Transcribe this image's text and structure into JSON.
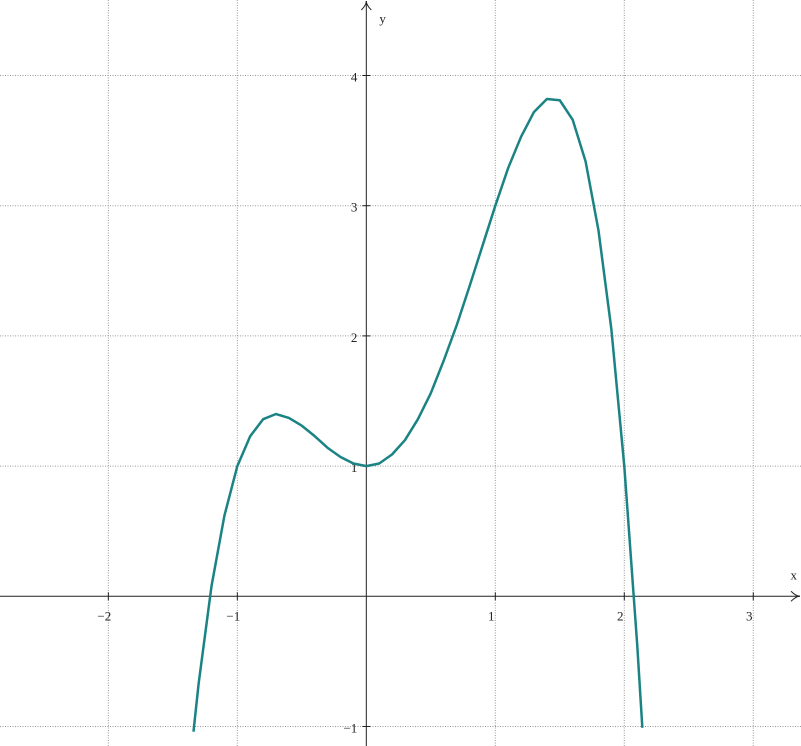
{
  "chart_data": {
    "type": "line",
    "x_label": "x",
    "y_label": "y",
    "xlim": [
      -2.84,
      3.37
    ],
    "ylim": [
      -1.15,
      4.58
    ],
    "xticks": [
      {
        "value": -2,
        "label": "−2"
      },
      {
        "value": -1,
        "label": "−1"
      },
      1,
      2,
      3
    ],
    "yticks": [
      {
        "value": -1,
        "label": "−1"
      },
      1,
      2,
      3,
      4
    ],
    "grid": true,
    "series": [
      {
        "color": "#1b8383",
        "x": [
          -1.34,
          -1.3,
          -1.2,
          -1.1,
          -1.0,
          -0.9,
          -0.8,
          -0.7,
          -0.6,
          -0.5,
          -0.4,
          -0.3,
          -0.2,
          -0.1,
          0,
          0.1,
          0.2,
          0.3,
          0.4,
          0.5,
          0.6,
          0.7,
          0.8,
          0.9,
          1.0,
          1.1,
          1.2,
          1.3,
          1.4,
          1.5,
          1.6,
          1.7,
          1.8,
          1.9,
          2.0,
          2.1,
          2.14
        ],
        "values": [
          -1.04,
          -0.67,
          0.08,
          0.62,
          1,
          1.23,
          1.36,
          1.4,
          1.37,
          1.31,
          1.23,
          1.14,
          1.07,
          1.02,
          1,
          1.02,
          1.09,
          1.2,
          1.36,
          1.56,
          1.81,
          2.08,
          2.38,
          2.69,
          3,
          3.29,
          3.53,
          3.72,
          3.82,
          3.81,
          3.66,
          3.34,
          2.81,
          2.05,
          1,
          -0.37,
          -1.01
        ]
      }
    ]
  }
}
